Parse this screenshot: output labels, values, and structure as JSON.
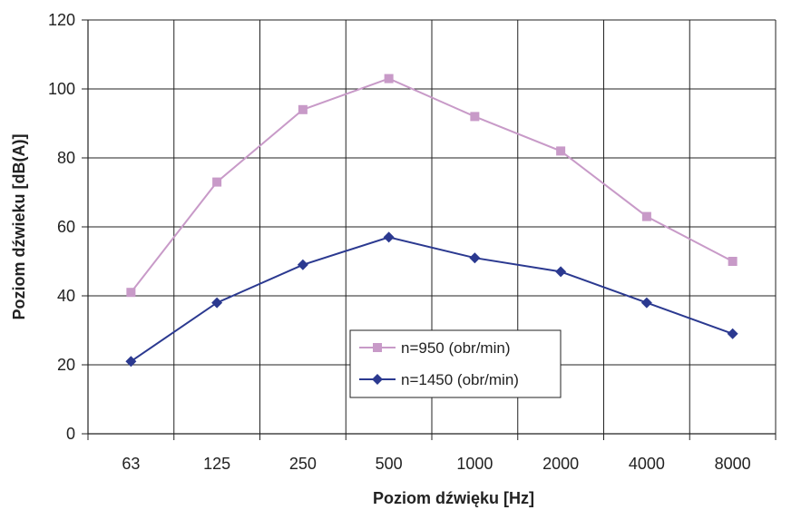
{
  "chart_data": {
    "type": "line",
    "title": "",
    "xlabel": "Poziom dźwięku [Hz]",
    "ylabel": "Poziom dźwieku [dB(A)]",
    "categories": [
      "63",
      "125",
      "250",
      "500",
      "1000",
      "2000",
      "4000",
      "8000"
    ],
    "ylim": [
      0,
      120
    ],
    "yticks": [
      0,
      20,
      40,
      60,
      80,
      100,
      120
    ],
    "grid": true,
    "legend": "inside-bottom-center",
    "series": [
      {
        "name": "n=950 (obr/min)",
        "color": "#c89ac8",
        "marker": "square",
        "values": [
          41,
          73,
          94,
          103,
          92,
          82,
          63,
          50
        ]
      },
      {
        "name": "n=1450 (obr/min)",
        "color": "#2b3990",
        "marker": "diamond",
        "values": [
          21,
          38,
          49,
          57,
          51,
          47,
          38,
          29
        ]
      }
    ]
  }
}
